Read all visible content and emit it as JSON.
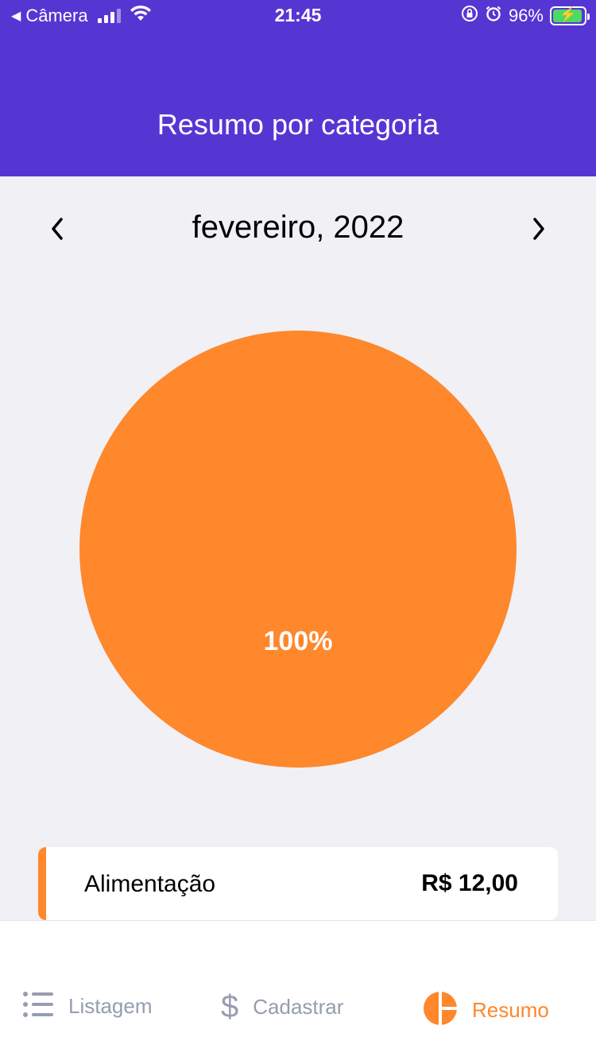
{
  "status_bar": {
    "back_app": "Câmera",
    "time": "21:45",
    "battery": "96%",
    "battery_level": 0.96
  },
  "header": {
    "title": "Resumo por categoria",
    "background": "#5636D3"
  },
  "month_selector": {
    "label": "fevereiro, 2022"
  },
  "chart_data": {
    "type": "pie",
    "categories": [
      "Alimentação"
    ],
    "values": [
      12.0
    ],
    "colors": [
      "#FF872C"
    ],
    "labels": [
      "100%"
    ]
  },
  "categories": [
    {
      "name": "Alimentação",
      "amount": "R$ 12,00",
      "color": "#FF872C"
    }
  ],
  "tab_bar": {
    "tabs": [
      {
        "label": "Listagem",
        "icon": "list-icon",
        "active": false
      },
      {
        "label": "Cadastrar",
        "icon": "dollar-sign-icon",
        "active": false
      },
      {
        "label": "Resumo",
        "icon": "pie-chart-icon",
        "active": true
      }
    ],
    "active_color": "#FF872C",
    "inactive_color": "#969CB2"
  }
}
